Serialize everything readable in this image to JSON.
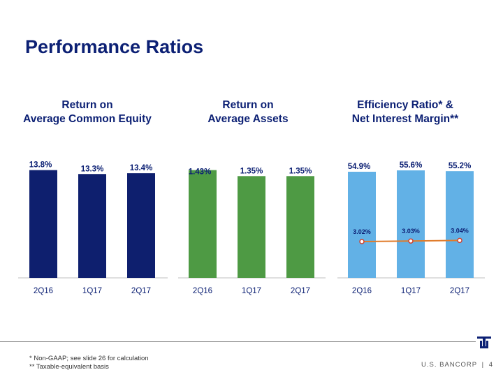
{
  "page": {
    "title": "Performance Ratios",
    "footnotes": [
      "* Non-GAAP; see slide 26 for calculation",
      "** Taxable-equivalent basis"
    ],
    "brand": "U.S. BANCORP",
    "separator": "|",
    "page_number": "4"
  },
  "titles": {
    "roe": [
      "Return on",
      "Average Common Equity"
    ],
    "roa": [
      "Return on",
      "Average Assets"
    ],
    "eff": [
      "Efficiency Ratio* &",
      "Net Interest Margin**"
    ]
  },
  "colors": {
    "roe_bar": "#0e1f6e",
    "roa_bar": "#4e9a44",
    "eff_bar": "#62b1e6",
    "nim_line": "#e07b2a",
    "nim_marker": "#d0412d",
    "title": "#0c2074"
  },
  "chart_data": [
    {
      "type": "bar",
      "title": "Return on Average Common Equity",
      "categories": [
        "2Q16",
        "1Q17",
        "2Q17"
      ],
      "values": [
        13.8,
        13.3,
        13.4
      ],
      "labels": [
        "13.8%",
        "13.3%",
        "13.4%"
      ],
      "unit": "%",
      "ylim": [
        0,
        15.2
      ]
    },
    {
      "type": "bar",
      "title": "Return on Average Assets",
      "categories": [
        "2Q16",
        "1Q17",
        "2Q17"
      ],
      "values": [
        1.43,
        1.35,
        1.35
      ],
      "labels": [
        "1.43%",
        "1.35%",
        "1.35%"
      ],
      "unit": "%",
      "ylim": [
        0,
        1.575
      ]
    },
    {
      "type": "bar",
      "title": "Efficiency Ratio* & Net Interest Margin**",
      "categories": [
        "2Q16",
        "1Q17",
        "2Q17"
      ],
      "series": [
        {
          "name": "Efficiency Ratio*",
          "type": "bar",
          "values": [
            54.9,
            55.6,
            55.2
          ],
          "labels": [
            "54.9%",
            "55.6%",
            "55.2%"
          ]
        },
        {
          "name": "Net Interest Margin**",
          "type": "line",
          "values": [
            3.02,
            3.03,
            3.04
          ],
          "labels": [
            "3.02%",
            "3.03%",
            "3.04%"
          ]
        }
      ],
      "ylim": [
        0,
        61.4
      ]
    }
  ]
}
